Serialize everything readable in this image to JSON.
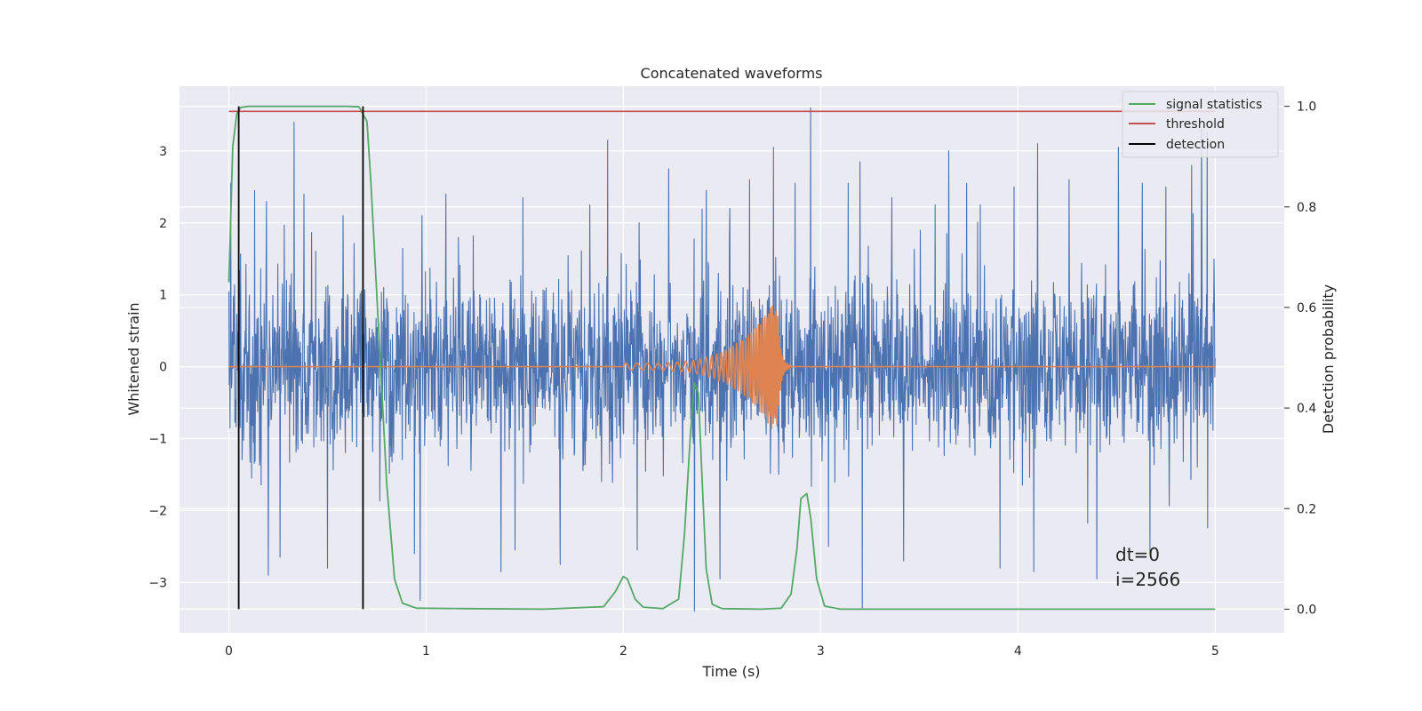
{
  "chart_data": {
    "type": "line",
    "title": "Concatenated waveforms",
    "xlabel": "Time (s)",
    "ylabel": "Whitened strain",
    "y2label": "Detection probability",
    "xlim": [
      -0.25,
      5.35
    ],
    "ylim": [
      -3.7,
      3.9
    ],
    "y2lim": [
      -0.047,
      1.04
    ],
    "xticks": [
      0,
      1,
      2,
      3,
      4,
      5
    ],
    "yticks": [
      -3,
      -2,
      -1,
      0,
      1,
      2,
      3
    ],
    "y2ticks": [
      0.0,
      0.2,
      0.4,
      0.6,
      0.8,
      1.0
    ],
    "xtick_labels": [
      "0",
      "1",
      "2",
      "3",
      "4",
      "5"
    ],
    "ytick_labels": [
      "−3",
      "−2",
      "−1",
      "0",
      "1",
      "2",
      "3"
    ],
    "y2tick_labels": [
      "0.0",
      "0.2",
      "0.4",
      "0.6",
      "0.8",
      "1.0"
    ],
    "grid": true,
    "legend_position": "top-right",
    "legend": [
      "signal statistics",
      "threshold",
      "detection"
    ],
    "series": [
      {
        "id": "noise",
        "axis": "left",
        "color": "#4c72b0",
        "x_range": [
          0,
          5
        ],
        "amplitude_std": 0.62,
        "spikes": [
          [
            0.01,
            2.55
          ],
          [
            0.13,
            2.45
          ],
          [
            0.19,
            2.3
          ],
          [
            0.33,
            3.4
          ],
          [
            0.38,
            2.4
          ],
          [
            0.58,
            2.1
          ],
          [
            0.98,
            2.1
          ],
          [
            1.1,
            2.4
          ],
          [
            1.49,
            2.35
          ],
          [
            1.83,
            2.25
          ],
          [
            1.92,
            3.15
          ],
          [
            2.08,
            2.0
          ],
          [
            2.23,
            2.75
          ],
          [
            2.42,
            2.45
          ],
          [
            2.54,
            2.2
          ],
          [
            2.64,
            2.6
          ],
          [
            2.76,
            3.05
          ],
          [
            2.87,
            2.55
          ],
          [
            2.95,
            3.6
          ],
          [
            3.14,
            2.55
          ],
          [
            3.2,
            2.85
          ],
          [
            3.36,
            2.35
          ],
          [
            3.58,
            2.25
          ],
          [
            3.65,
            3.0
          ],
          [
            3.74,
            2.55
          ],
          [
            3.81,
            2.25
          ],
          [
            3.98,
            2.5
          ],
          [
            4.1,
            3.1
          ],
          [
            4.26,
            2.6
          ],
          [
            4.51,
            3.05
          ],
          [
            4.63,
            2.55
          ],
          [
            4.75,
            2.5
          ],
          [
            4.88,
            2.8
          ],
          [
            4.93,
            3.3
          ],
          [
            4.96,
            3.25
          ],
          [
            0.2,
            -2.9
          ],
          [
            0.26,
            -2.65
          ],
          [
            0.5,
            -2.8
          ],
          [
            0.94,
            -2.6
          ],
          [
            0.97,
            -3.25
          ],
          [
            1.38,
            -2.85
          ],
          [
            1.45,
            -2.55
          ],
          [
            1.68,
            -2.75
          ],
          [
            2.07,
            -2.55
          ],
          [
            2.36,
            -3.4
          ],
          [
            2.49,
            -2.95
          ],
          [
            3.04,
            -2.5
          ],
          [
            3.21,
            -3.35
          ],
          [
            3.42,
            -2.7
          ],
          [
            3.91,
            -2.8
          ],
          [
            4.08,
            -2.85
          ],
          [
            4.4,
            -2.95
          ],
          [
            4.67,
            -2.6
          ]
        ]
      },
      {
        "id": "injected-waveform",
        "axis": "left",
        "color": "#dd8452",
        "t_start": 2.0,
        "t_merge": 2.78,
        "t_end": 2.85,
        "f_start": 18,
        "f_end": 120,
        "amp_start": 0.05,
        "amp_peak": 1.0
      },
      {
        "name": "signal statistics",
        "axis": "right",
        "color": "#55a868",
        "x": [
          0.0,
          0.02,
          0.04,
          0.06,
          0.1,
          0.2,
          0.4,
          0.6,
          0.66,
          0.7,
          0.72,
          0.76,
          0.8,
          0.84,
          0.88,
          0.95,
          1.2,
          1.6,
          1.9,
          1.96,
          2.0,
          2.02,
          2.06,
          2.1,
          2.2,
          2.28,
          2.31,
          2.34,
          2.36,
          2.38,
          2.4,
          2.42,
          2.45,
          2.5,
          2.7,
          2.8,
          2.85,
          2.88,
          2.9,
          2.93,
          2.95,
          2.98,
          3.02,
          3.1,
          4.0,
          5.0
        ],
        "values": [
          0.65,
          0.92,
          0.985,
          0.998,
          1.0,
          1.0,
          1.0,
          1.0,
          0.999,
          0.97,
          0.85,
          0.55,
          0.25,
          0.06,
          0.012,
          0.002,
          0.001,
          0.0,
          0.005,
          0.035,
          0.065,
          0.06,
          0.02,
          0.004,
          0.001,
          0.02,
          0.15,
          0.35,
          0.45,
          0.43,
          0.25,
          0.08,
          0.01,
          0.001,
          0.0,
          0.002,
          0.03,
          0.12,
          0.22,
          0.23,
          0.18,
          0.06,
          0.006,
          0.0,
          0.0,
          0.0
        ]
      },
      {
        "name": "threshold",
        "axis": "right",
        "color": "#c44e52",
        "x": [
          0,
          5
        ],
        "values": [
          0.99,
          0.99
        ]
      },
      {
        "name": "detection",
        "axis": "right",
        "color": "#000000",
        "x": [
          0.05,
          0.68
        ],
        "values": [
          1.0,
          1.0
        ]
      }
    ],
    "annotations": [
      "dt=0",
      "i=2566"
    ]
  }
}
